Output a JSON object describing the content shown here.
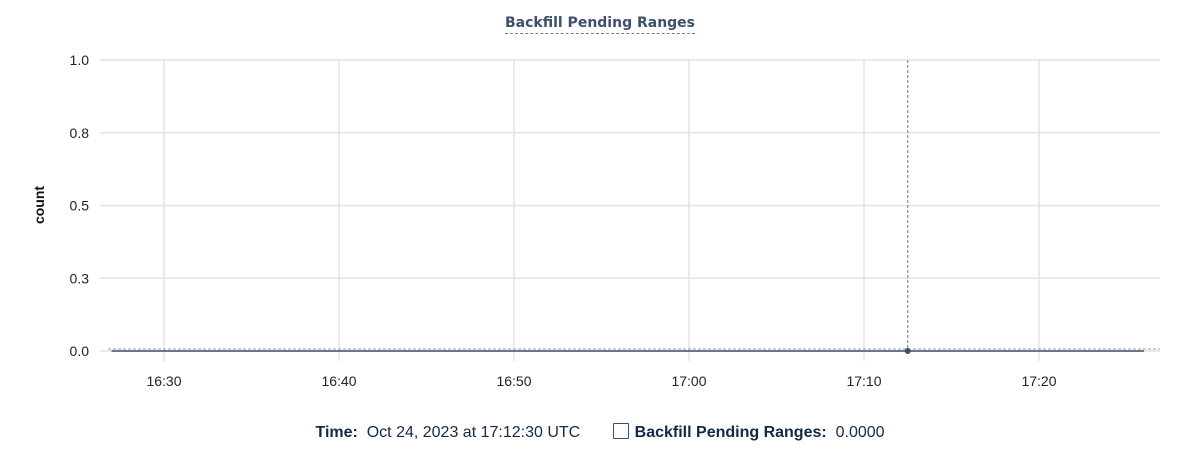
{
  "chart_data": {
    "type": "line",
    "title": "Backfill Pending Ranges",
    "ylabel": "count",
    "xlabel": "",
    "ylim": [
      0,
      1
    ],
    "y_ticks": [
      {
        "value": 0,
        "label": "0.0"
      },
      {
        "value": 0.25,
        "label": "0.3"
      },
      {
        "value": 0.5,
        "label": "0.5"
      },
      {
        "value": 0.75,
        "label": "0.8"
      },
      {
        "value": 1,
        "label": "1.0"
      }
    ],
    "xlim": [
      "16:26:30",
      "17:27:00"
    ],
    "x_ticks": [
      "16:30",
      "16:40",
      "16:50",
      "17:00",
      "17:10",
      "17:20"
    ],
    "grid": true,
    "series": [
      {
        "name": "Backfill Pending Ranges",
        "color": "#3d4f6b",
        "x": [
          "16:27:00",
          "16:40:00",
          "17:00:00",
          "17:12:30",
          "17:26:00"
        ],
        "values": [
          0,
          0,
          0,
          0,
          0
        ]
      }
    ],
    "hover": {
      "x": "17:12:30",
      "value": 0
    }
  },
  "legend": {
    "time_label": "Time:",
    "time_value": "Oct 24, 2023 at 17:12:30 UTC",
    "series_label": "Backfill Pending Ranges:",
    "series_value": "0.0000"
  }
}
